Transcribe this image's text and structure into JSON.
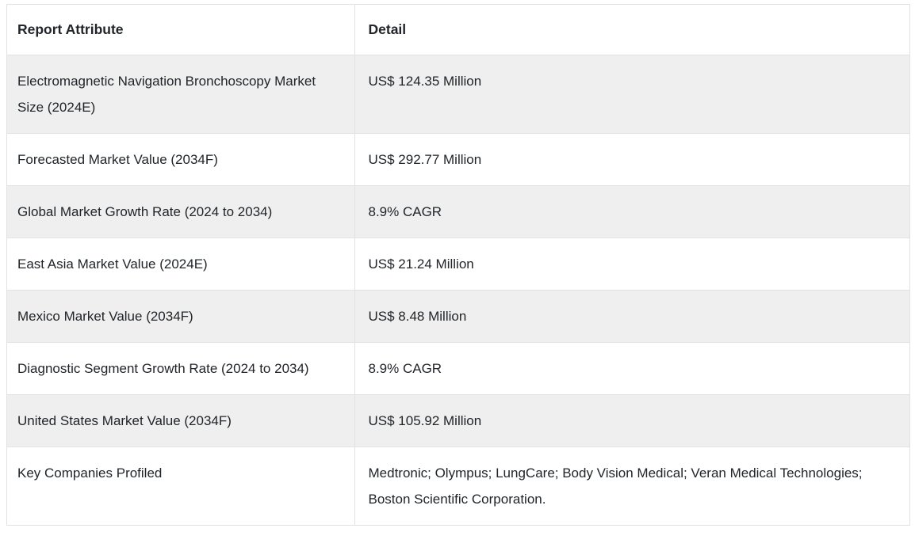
{
  "table": {
    "columns": {
      "attribute": "Report Attribute",
      "detail": "Detail"
    },
    "rows": [
      {
        "attribute": "Electromagnetic Navigation Bronchoscopy Market Size (2024E)",
        "detail": "US$ 124.35 Million"
      },
      {
        "attribute": "Forecasted Market Value (2034F)",
        "detail": "US$ 292.77 Million"
      },
      {
        "attribute": "Global Market Growth Rate (2024 to 2034)",
        "detail": "8.9% CAGR"
      },
      {
        "attribute": "East Asia Market Value (2024E)",
        "detail": "US$ 21.24 Million"
      },
      {
        "attribute": "Mexico Market Value (2034F)",
        "detail": "US$ 8.48 Million"
      },
      {
        "attribute": "Diagnostic Segment Growth Rate (2024 to 2034)",
        "detail": "8.9% CAGR"
      },
      {
        "attribute": "United States Market Value (2034F)",
        "detail": "US$ 105.92 Million"
      },
      {
        "attribute": "Key Companies Profiled",
        "detail": "Medtronic; Olympus; LungCare; Body Vision Medical; Veran Medical Technologies; Boston Scientific Corporation."
      }
    ],
    "colors": {
      "stripe_background": "#efefef",
      "row_background": "#ffffff",
      "border": "#e2e2e2",
      "text": "#212529"
    }
  }
}
